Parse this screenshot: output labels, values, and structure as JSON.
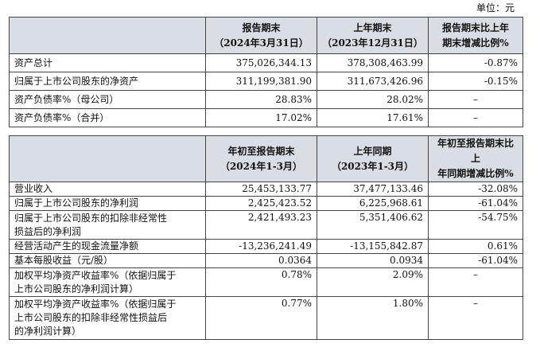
{
  "unit_label": "单位：元",
  "table1": {
    "headers": [
      "",
      "报告期末\n（2024年3月31日）",
      "上年期末\n（2023年12月31日）",
      "报告期末比上年\n期末增减比例%"
    ],
    "rows": [
      [
        "资产总计",
        "375,026,344.13",
        "378,308,463.99",
        "-0.87%"
      ],
      [
        "归属于上市公司股东的净资产",
        "311,199,381.90",
        "311,673,426.96",
        "-0.15%"
      ],
      [
        "资产负债率%（母公司）",
        "28.83%",
        "28.02%",
        "–"
      ],
      [
        "资产负债率%（合并）",
        "17.02%",
        "17.61%",
        "–"
      ]
    ]
  },
  "table2": {
    "headers": [
      "",
      "年初至报告期末\n（2024年1-3月）",
      "上年同期\n（2023年1-3月）",
      "年初至报告期末比上\n年同期增减比例%"
    ],
    "rows": [
      [
        "营业收入",
        "25,453,133.77",
        "37,477,133.46",
        "-32.08%"
      ],
      [
        "归属于上市公司股东的净利润",
        "2,425,423.52",
        "6,225,968.61",
        "-61.04%"
      ],
      [
        "归属于上市公司股东的扣除非经常性\n损益后的净利润",
        "2,421,493.23",
        "5,351,406.62",
        "-54.75%"
      ],
      [
        "经营活动产生的现金流量净额",
        "-13,236,241.49",
        "-13,155,842.87",
        "0.61%"
      ],
      [
        "基本每股收益（元/股）",
        "0.0364",
        "0.0934",
        "-61.04%"
      ],
      [
        "加权平均净资产收益率%（依据归属于\n上市公司股东的净利润计算）",
        "0.78%",
        "2.09%",
        "–"
      ],
      [
        "加权平均净资产收益率%（依据归属于\n上市公司股东的扣除非经常性损益后\n的净利润计算）",
        "0.77%",
        "1.80%",
        "–"
      ]
    ]
  }
}
